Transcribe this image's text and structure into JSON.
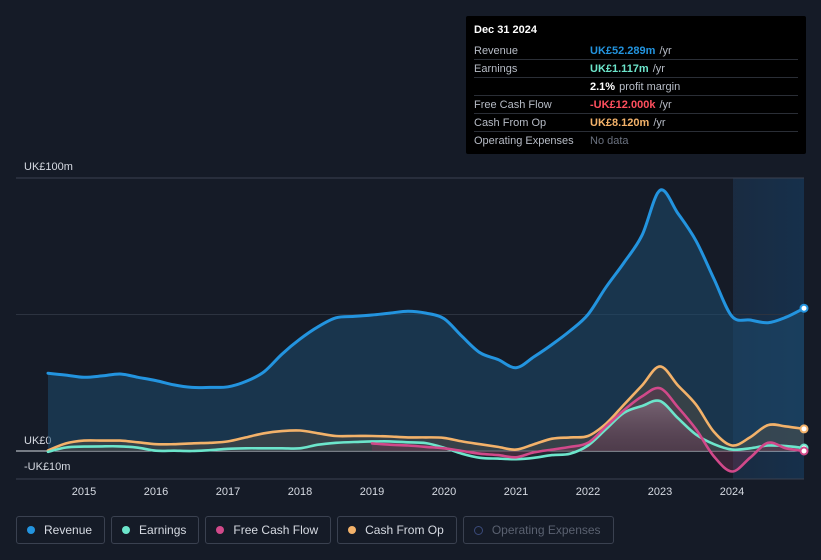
{
  "tooltip": {
    "date": "Dec 31 2024",
    "rows": [
      {
        "label": "Revenue",
        "value": "UK£52.289m",
        "unit": "/yr",
        "color": "#2394df"
      },
      {
        "label": "Earnings",
        "value": "UK£1.117m",
        "unit": "/yr",
        "color": "#6ce5cb"
      },
      {
        "label": "",
        "value": "2.1%",
        "unit": "profit margin",
        "color": "#ffffff"
      },
      {
        "label": "Free Cash Flow",
        "value": "-UK£12.000k",
        "unit": "/yr",
        "color": "#ff4f5e"
      },
      {
        "label": "Cash From Op",
        "value": "UK£8.120m",
        "unit": "/yr",
        "color": "#f3b26a"
      },
      {
        "label": "Operating Expenses",
        "value": "No data",
        "unit": "",
        "color": "#6b7280"
      }
    ]
  },
  "legend": [
    {
      "label": "Revenue",
      "color": "#2394df"
    },
    {
      "label": "Earnings",
      "color": "#6ce5cb"
    },
    {
      "label": "Free Cash Flow",
      "color": "#d1498a"
    },
    {
      "label": "Cash From Op",
      "color": "#f3b26a"
    },
    {
      "label": "Operating Expenses",
      "color": "#3a4a7a",
      "disabled": true
    }
  ],
  "chart_data": {
    "type": "area",
    "y_tick_labels": [
      "UK£100m",
      "UK£0",
      "-UK£10m"
    ],
    "y_ticks": [
      100,
      0,
      -10
    ],
    "ylim": [
      -10,
      100
    ],
    "xlim": [
      2014.5,
      2025.0
    ],
    "x_ticks": [
      2015,
      2016,
      2017,
      2018,
      2019,
      2020,
      2021,
      2022,
      2023,
      2024
    ],
    "x_tick_labels": [
      "2015",
      "2016",
      "2017",
      "2018",
      "2019",
      "2020",
      "2021",
      "2022",
      "2023",
      "2024"
    ],
    "forecast_start": 2024.0,
    "grid": true,
    "series": [
      {
        "name": "Revenue",
        "color": "#2394df",
        "x": [
          2014.5,
          2014.75,
          2015.0,
          2015.25,
          2015.5,
          2015.75,
          2016.0,
          2016.25,
          2016.5,
          2016.75,
          2017.0,
          2017.25,
          2017.5,
          2017.75,
          2018.0,
          2018.25,
          2018.5,
          2018.75,
          2019.0,
          2019.25,
          2019.5,
          2019.75,
          2020.0,
          2020.25,
          2020.5,
          2020.75,
          2021.0,
          2021.25,
          2021.5,
          2021.75,
          2022.0,
          2022.25,
          2022.5,
          2022.75,
          2023.0,
          2023.25,
          2023.5,
          2023.75,
          2024.0,
          2024.25,
          2024.5,
          2024.75,
          2025.0
        ],
        "values": [
          28.5,
          27.8,
          27.0,
          27.5,
          28.2,
          27.0,
          25.8,
          24.2,
          23.3,
          23.3,
          23.5,
          25.5,
          29.0,
          35.5,
          41.0,
          45.5,
          48.8,
          49.3,
          49.8,
          50.5,
          51.2,
          50.5,
          48.5,
          42.0,
          36.0,
          33.5,
          30.5,
          34.5,
          39.0,
          44.0,
          50.0,
          60.0,
          69.0,
          79.0,
          95.5,
          87.0,
          77.0,
          63.0,
          49.3,
          48.0,
          47.0,
          49.0,
          52.3
        ]
      },
      {
        "name": "Earnings",
        "color": "#6ce5cb",
        "x": [
          2014.5,
          2014.75,
          2015.0,
          2015.25,
          2015.5,
          2015.75,
          2016.0,
          2016.25,
          2016.5,
          2016.75,
          2017.0,
          2017.25,
          2017.5,
          2017.75,
          2018.0,
          2018.25,
          2018.5,
          2018.75,
          2019.0,
          2019.25,
          2019.5,
          2019.75,
          2020.0,
          2020.25,
          2020.5,
          2020.75,
          2021.0,
          2021.25,
          2021.5,
          2021.75,
          2022.0,
          2022.25,
          2022.5,
          2022.75,
          2023.0,
          2023.25,
          2023.5,
          2023.75,
          2024.0,
          2024.25,
          2024.5,
          2024.75,
          2025.0
        ],
        "values": [
          -0.3,
          1.3,
          1.6,
          1.7,
          1.7,
          1.2,
          0.1,
          0.1,
          0.0,
          0.3,
          0.8,
          1.0,
          1.0,
          1.0,
          1.0,
          2.3,
          3.0,
          3.3,
          3.5,
          3.5,
          3.2,
          2.9,
          1.2,
          -1.0,
          -2.5,
          -2.8,
          -3.0,
          -2.5,
          -1.5,
          -1.0,
          2.0,
          8.0,
          14.0,
          16.5,
          18.3,
          12.0,
          6.0,
          2.5,
          0.5,
          1.0,
          2.0,
          1.8,
          1.1
        ]
      },
      {
        "name": "Free Cash Flow",
        "color": "#d1498a",
        "x": [
          2019.0,
          2019.25,
          2019.5,
          2019.75,
          2020.0,
          2020.25,
          2020.5,
          2020.75,
          2021.0,
          2021.25,
          2021.5,
          2021.75,
          2022.0,
          2022.25,
          2022.5,
          2022.75,
          2023.0,
          2023.25,
          2023.5,
          2023.75,
          2024.0,
          2024.25,
          2024.5,
          2024.75,
          2025.0
        ],
        "values": [
          2.8,
          2.3,
          2.0,
          1.5,
          1.0,
          0.0,
          -1.0,
          -1.5,
          -2.3,
          -0.5,
          0.5,
          1.5,
          3.0,
          9.0,
          15.0,
          20.0,
          23.0,
          16.0,
          8.0,
          -2.0,
          -7.5,
          -2.5,
          3.0,
          1.0,
          0.0
        ]
      },
      {
        "name": "Cash From Op",
        "color": "#f3b26a",
        "x": [
          2014.5,
          2014.75,
          2015.0,
          2015.25,
          2015.5,
          2015.75,
          2016.0,
          2016.25,
          2016.5,
          2016.75,
          2017.0,
          2017.25,
          2017.5,
          2017.75,
          2018.0,
          2018.25,
          2018.5,
          2018.75,
          2019.0,
          2019.25,
          2019.5,
          2019.75,
          2020.0,
          2020.25,
          2020.5,
          2020.75,
          2021.0,
          2021.25,
          2021.5,
          2021.75,
          2022.0,
          2022.25,
          2022.5,
          2022.75,
          2023.0,
          2023.25,
          2023.5,
          2023.75,
          2024.0,
          2024.25,
          2024.5,
          2024.75,
          2025.0
        ],
        "values": [
          0.2,
          2.8,
          3.8,
          3.8,
          3.8,
          3.2,
          2.5,
          2.5,
          2.8,
          3.0,
          3.5,
          5.0,
          6.5,
          7.3,
          7.5,
          6.5,
          5.5,
          5.5,
          5.5,
          5.3,
          5.0,
          5.0,
          4.8,
          3.5,
          2.5,
          1.5,
          0.5,
          2.5,
          4.5,
          5.0,
          5.5,
          10.0,
          17.0,
          24.0,
          31.0,
          24.0,
          17.0,
          7.0,
          2.0,
          5.0,
          9.5,
          9.0,
          8.1
        ]
      }
    ]
  }
}
